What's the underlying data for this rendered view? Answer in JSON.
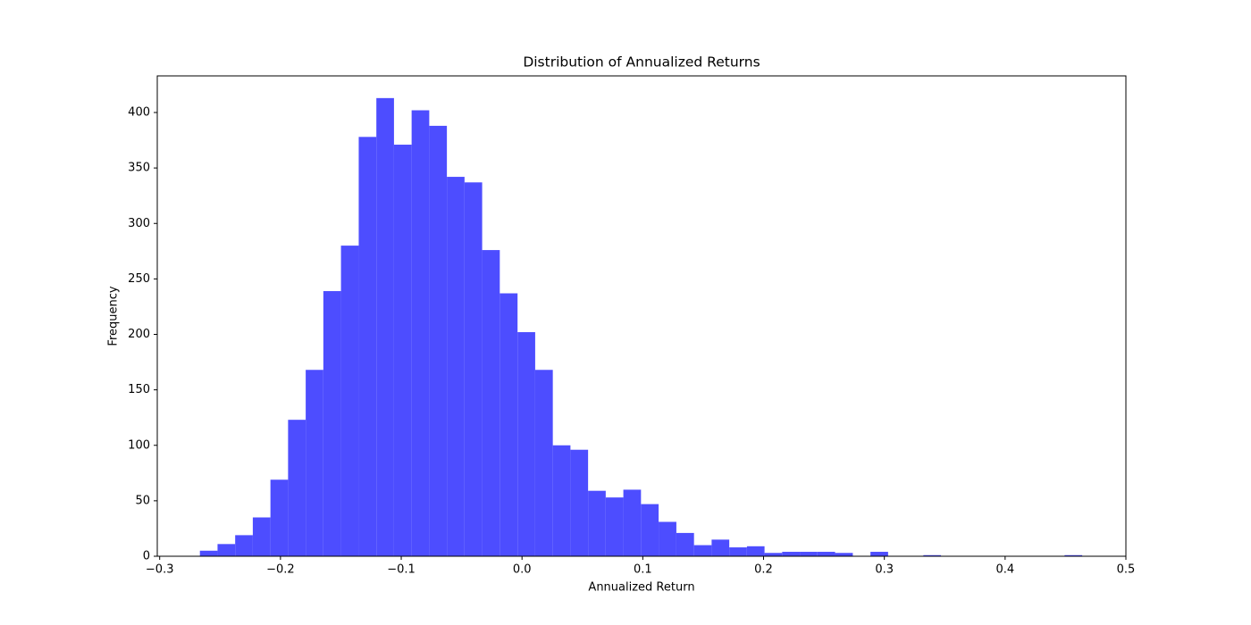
{
  "chart_data": {
    "type": "histogram",
    "title": "Distribution of Annualized Returns",
    "x_label": "Annualized Return",
    "y_label": "Frequency",
    "color": "#4d4dff",
    "bins": [
      -0.2667,
      -0.2521,
      -0.2375,
      -0.2229,
      -0.2083,
      -0.1937,
      -0.1791,
      -0.1645,
      -0.1499,
      -0.1352,
      -0.1206,
      -0.106,
      -0.0914,
      -0.0768,
      -0.0622,
      -0.0476,
      -0.033,
      -0.0184,
      -0.0037,
      0.0109,
      0.0255,
      0.0401,
      0.0547,
      0.0693,
      0.0839,
      0.0985,
      0.1131,
      0.1278,
      0.1424,
      0.157,
      0.1716,
      0.1862,
      0.2008,
      0.2154,
      0.23,
      0.2446,
      0.2592,
      0.2739,
      0.2885,
      0.3031,
      0.3177,
      0.3323,
      0.3469,
      0.3615,
      0.3761,
      0.3907,
      0.4053,
      0.42,
      0.4346,
      0.4492,
      0.4638
    ],
    "values": [
      5,
      11,
      19,
      35,
      69,
      123,
      168,
      239,
      280,
      378,
      413,
      371,
      402,
      388,
      342,
      337,
      276,
      237,
      202,
      168,
      100,
      96,
      59,
      53,
      60,
      47,
      31,
      21,
      10,
      15,
      8,
      9,
      3,
      4,
      4,
      4,
      3,
      0,
      4,
      0,
      0,
      1,
      0,
      0,
      0,
      0,
      0,
      0,
      0,
      1
    ],
    "xlim": [
      -0.302,
      0.5
    ],
    "xticks": [
      {
        "value": -0.3,
        "label": "−0.3"
      },
      {
        "value": -0.2,
        "label": "−0.2"
      },
      {
        "value": -0.1,
        "label": "−0.1"
      },
      {
        "value": 0,
        "label": "0.0"
      },
      0.1,
      0.2,
      0.3,
      0.4,
      0.5
    ],
    "ylim": [
      0,
      433
    ],
    "yticks": [
      0,
      50,
      100,
      150,
      200,
      250,
      300,
      350,
      400
    ]
  }
}
